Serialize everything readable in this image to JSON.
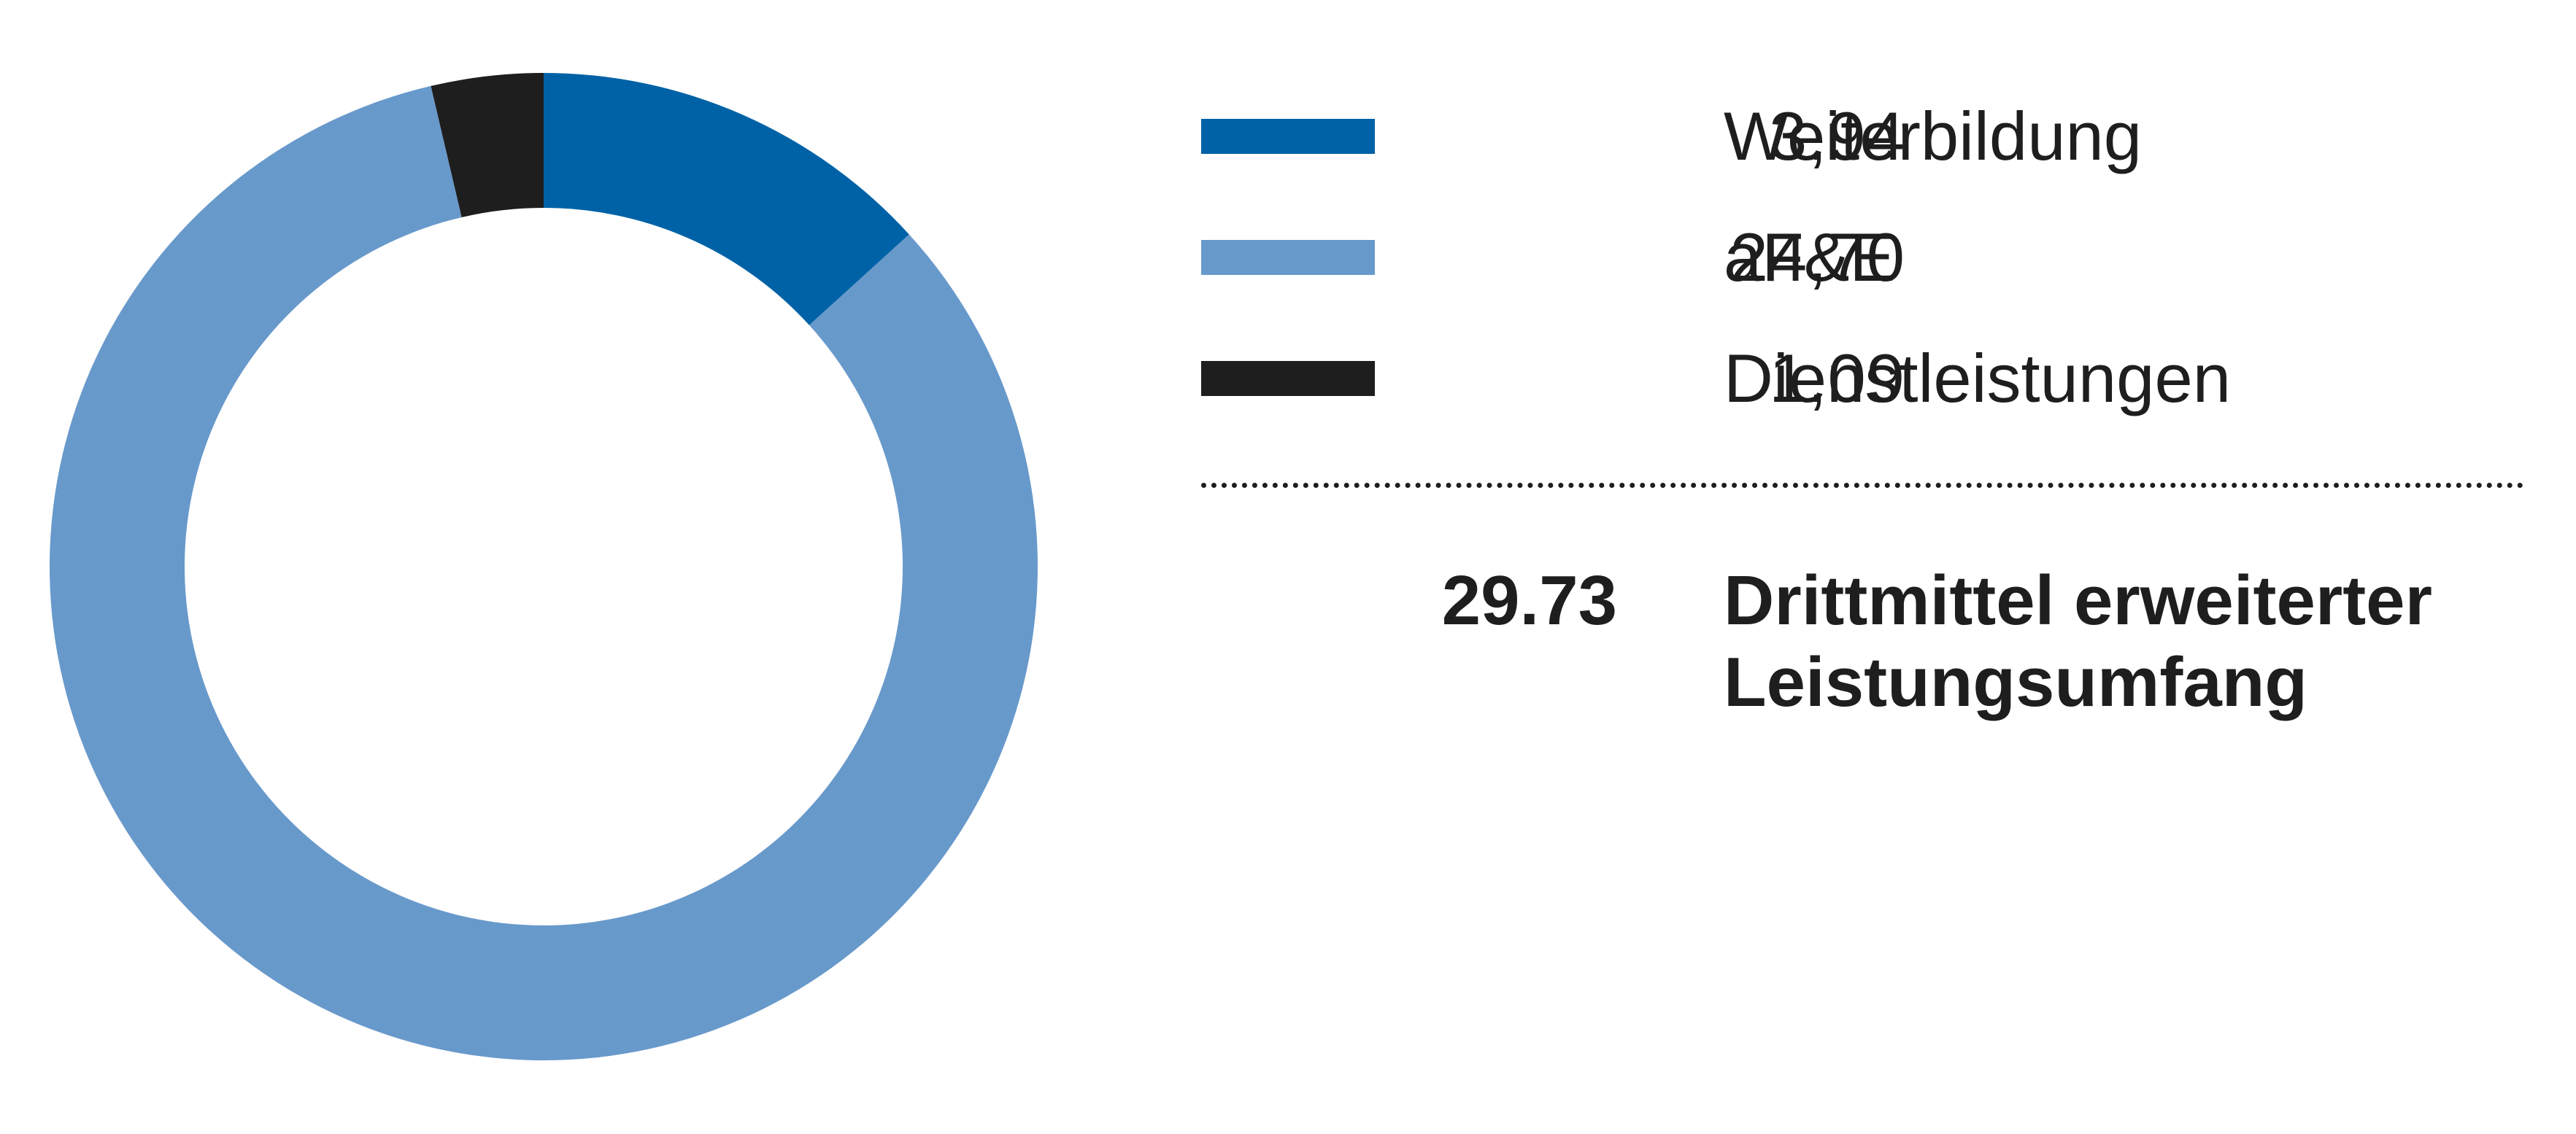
{
  "chart_data": {
    "type": "pie",
    "style": "donut",
    "slices": [
      {
        "label": "Weiterbildung",
        "display_value": "3,94",
        "value": 3.94,
        "color": "#0062a6"
      },
      {
        "label": "aF&E",
        "display_value": "24,70",
        "value": 24.7,
        "color": "#6899cb"
      },
      {
        "label": "Dienstleistungen",
        "display_value": "1,09",
        "value": 1.09,
        "color": "#1e1e1e"
      }
    ],
    "total": {
      "display_value": "29.73",
      "value": 29.73,
      "label_line1": "Drittmittel erweiterter",
      "label_line2": "Leistungsumfang"
    },
    "legend_position": "right",
    "start_angle": "top, clockwise"
  }
}
